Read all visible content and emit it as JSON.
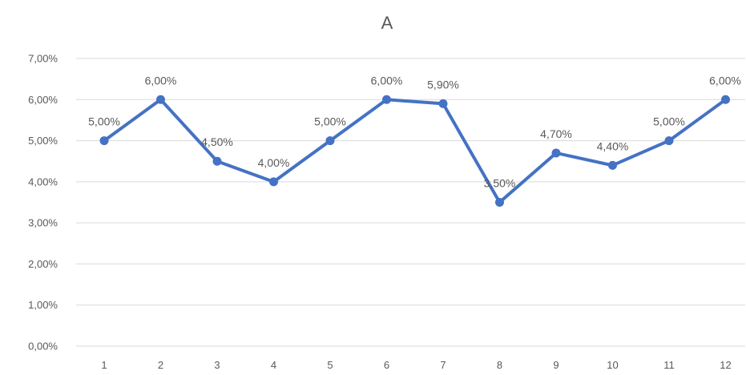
{
  "chart_data": {
    "type": "line",
    "title": "A",
    "xlabel": "",
    "ylabel": "",
    "categories": [
      "1",
      "2",
      "3",
      "4",
      "5",
      "6",
      "7",
      "8",
      "9",
      "10",
      "11",
      "12"
    ],
    "series": [
      {
        "values": [
          5.0,
          6.0,
          4.5,
          4.0,
          5.0,
          6.0,
          5.9,
          3.5,
          4.7,
          4.4,
          5.0,
          6.0
        ],
        "labels": [
          "5,00%",
          "6,00%",
          "4,50%",
          "4,00%",
          "5,00%",
          "6,00%",
          "5,90%",
          "3,50%",
          "4,70%",
          "4,40%",
          "5,00%",
          "6,00%"
        ],
        "color": "#4472c4"
      }
    ],
    "ylim": [
      0,
      7
    ],
    "yticks": [
      "0,00%",
      "1,00%",
      "2,00%",
      "3,00%",
      "4,00%",
      "5,00%",
      "6,00%",
      "7,00%"
    ],
    "grid": true,
    "legend": "none"
  }
}
